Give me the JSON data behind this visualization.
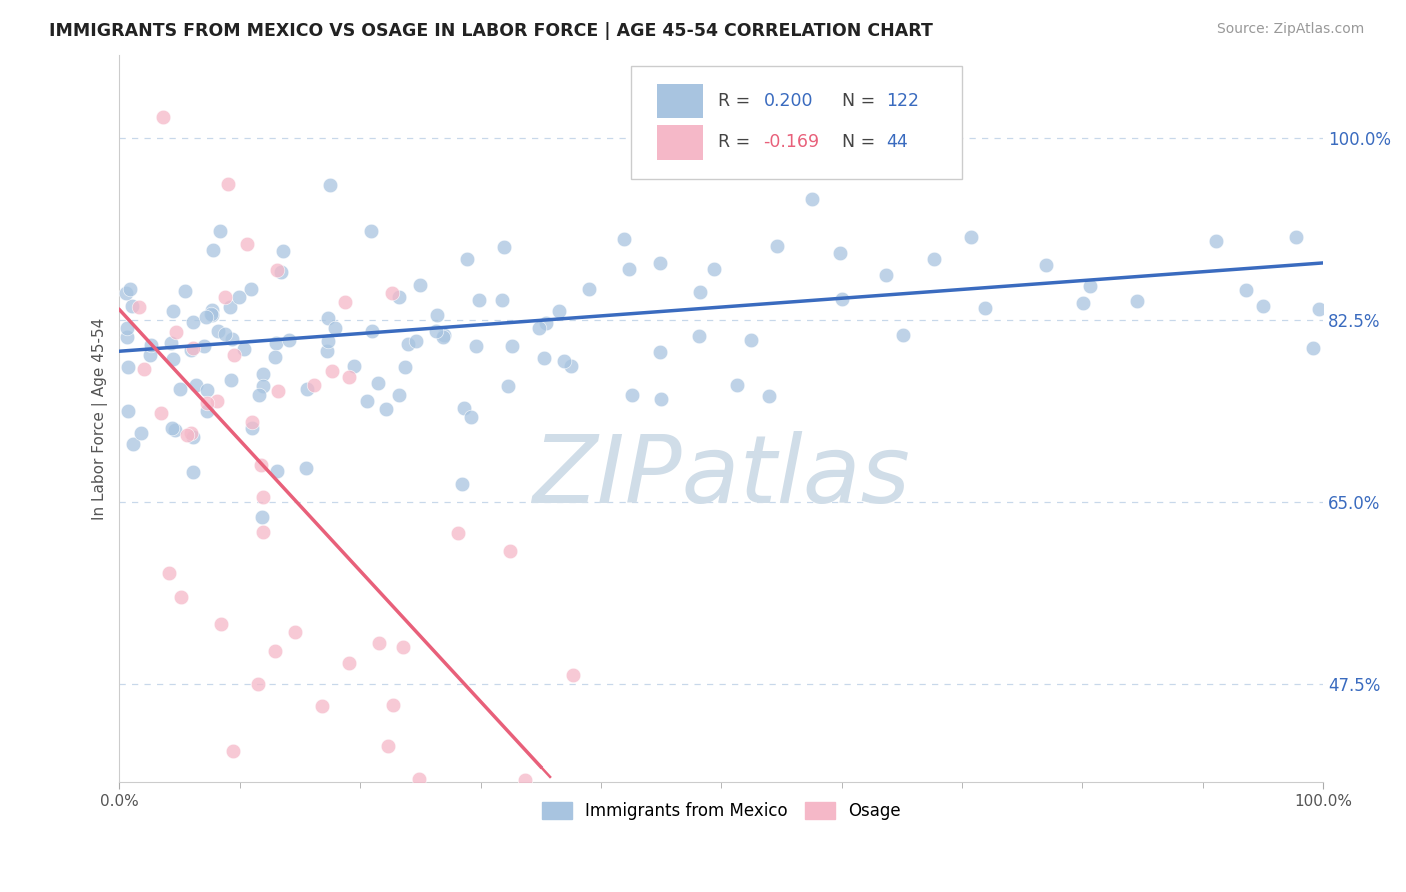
{
  "title": "IMMIGRANTS FROM MEXICO VS OSAGE IN LABOR FORCE | AGE 45-54 CORRELATION CHART",
  "source": "Source: ZipAtlas.com",
  "ylabel": "In Labor Force | Age 45-54",
  "xlim": [
    0.0,
    1.0
  ],
  "ylim": [
    0.38,
    1.08
  ],
  "ytick_values": [
    0.475,
    0.65,
    0.825,
    1.0
  ],
  "ytick_labels": [
    "47.5%",
    "65.0%",
    "82.5%",
    "100.0%"
  ],
  "legend_labels": [
    "Immigrants from Mexico",
    "Osage"
  ],
  "blue_color": "#a8c4e0",
  "pink_color": "#f5b8c8",
  "blue_line_color": "#3a6bbf",
  "pink_line_color": "#e8607a",
  "R_blue": 0.2,
  "N_blue": 122,
  "R_pink": -0.169,
  "N_pink": 44,
  "blue_line_y0": 0.795,
  "blue_line_y1": 0.88,
  "pink_line_solid_x0": 0.0,
  "pink_line_solid_x1": 0.35,
  "pink_line_y0": 0.835,
  "pink_line_y1": 0.395,
  "watermark_text": "ZIPatlas",
  "watermark_color": "#d0dde8",
  "grid_color": "#c8d8ea",
  "spine_color": "#cccccc"
}
